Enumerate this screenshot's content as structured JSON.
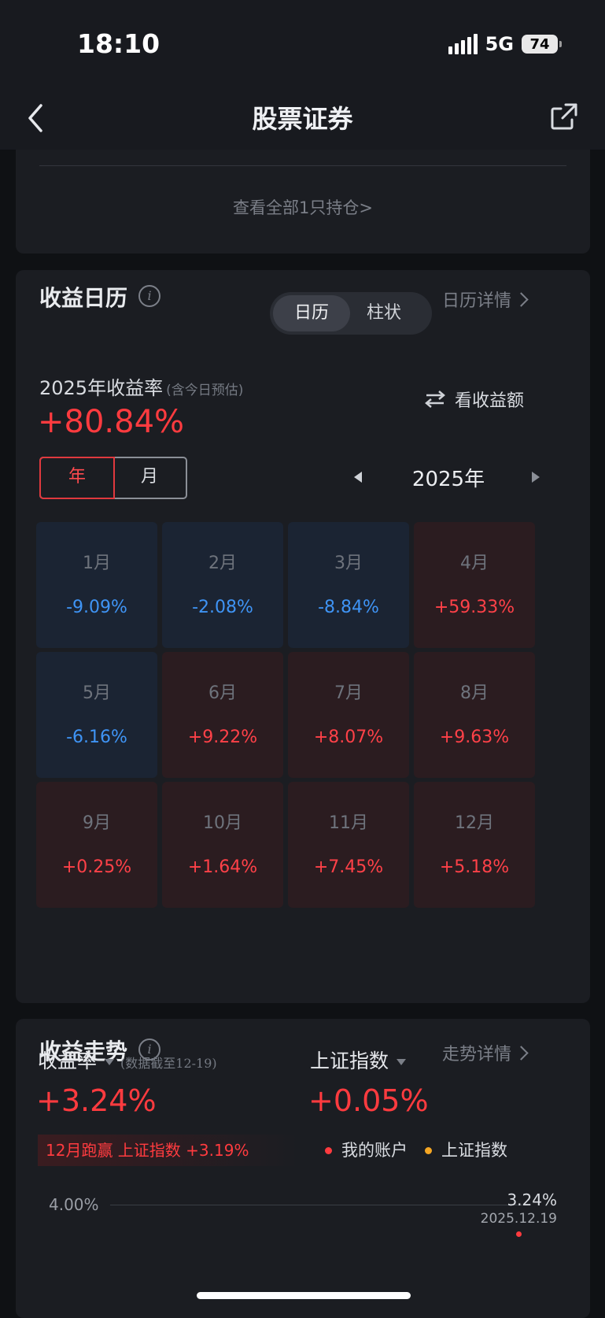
{
  "status_bar": {
    "time": "18:10",
    "network": "5G",
    "battery": "74"
  },
  "nav": {
    "title": "股票证券",
    "back_icon": "chevron-left-icon",
    "share_icon": "share-icon"
  },
  "holdings": {
    "view_all": "查看全部1只持仓>"
  },
  "calendar": {
    "title": "收益日历",
    "tabs": [
      {
        "label": "日历",
        "active": true
      },
      {
        "label": "柱状",
        "active": false
      }
    ],
    "detail_link": "日历详情",
    "rate_label": "2025年收益率",
    "rate_note": "(含今日预估)",
    "rate_value": "+80.84%",
    "switch_label": "看收益额",
    "period_toggle": [
      {
        "label": "年",
        "active": true
      },
      {
        "label": "月",
        "active": false
      }
    ],
    "year": "2025年",
    "months": [
      {
        "month": "1月",
        "value": "-9.09%",
        "sign": "neg"
      },
      {
        "month": "2月",
        "value": "-2.08%",
        "sign": "neg"
      },
      {
        "month": "3月",
        "value": "-8.84%",
        "sign": "neg"
      },
      {
        "month": "4月",
        "value": "+59.33%",
        "sign": "pos"
      },
      {
        "month": "5月",
        "value": "-6.16%",
        "sign": "neg"
      },
      {
        "month": "6月",
        "value": "+9.22%",
        "sign": "pos"
      },
      {
        "month": "7月",
        "value": "+8.07%",
        "sign": "pos"
      },
      {
        "month": "8月",
        "value": "+9.63%",
        "sign": "pos"
      },
      {
        "month": "9月",
        "value": "+0.25%",
        "sign": "pos"
      },
      {
        "month": "10月",
        "value": "+1.64%",
        "sign": "pos"
      },
      {
        "month": "11月",
        "value": "+7.45%",
        "sign": "pos"
      },
      {
        "month": "12月",
        "value": "+5.18%",
        "sign": "pos"
      }
    ]
  },
  "trend": {
    "title": "收益走势",
    "detail_link": "走势详情",
    "return_label": "收益率",
    "return_note": "(数据截至12-19)",
    "return_value": "+3.24%",
    "index_label": "上证指数",
    "index_value": "+0.05%",
    "beat_text": "12月跑赢 上证指数 +3.19%",
    "legend": [
      {
        "label": "我的账户",
        "color": "#ff3b3f"
      },
      {
        "label": "上证指数",
        "color": "#f5a623"
      }
    ],
    "axis_top": "4.00%",
    "end_value": "3.24%",
    "end_date": "2025.12.19"
  },
  "colors": {
    "positive": "#ff3b3f",
    "negative": "#3f94f5",
    "background": "#0f1114",
    "card": "#1b1d22"
  }
}
